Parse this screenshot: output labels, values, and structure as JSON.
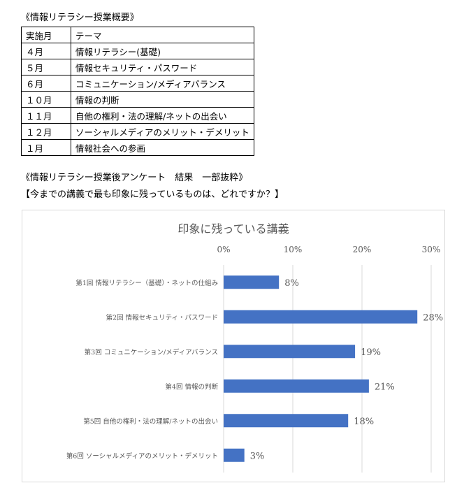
{
  "overview": {
    "heading": "《情報リテラシー授業概要》",
    "columns": [
      "実施月",
      "テーマ"
    ],
    "rows": [
      [
        "４月",
        "情報リテラシー(基礎)"
      ],
      [
        "５月",
        "情報セキュリティ・パスワード"
      ],
      [
        "６月",
        "コミュニケーション/メディアバランス"
      ],
      [
        "１０月",
        "情報の判断"
      ],
      [
        "１１月",
        "自他の権利・法の理解/ネットの出会い"
      ],
      [
        "１２月",
        "ソーシャルメディアのメリット・デメリット"
      ],
      [
        "１月",
        "情報社会への参画"
      ]
    ]
  },
  "survey": {
    "heading": "《情報リテラシー授業後アンケート　結果　一部抜粋》",
    "question": "【今までの講義で最も印象に残っているものは、どれですか？】"
  },
  "chart_data": {
    "type": "bar",
    "orientation": "horizontal",
    "title": "印象に残っている講義",
    "categories": [
      "第1回 情報リテラシー（基礎）・ネットの仕組み",
      "第2回 情報セキュリティ・パスワード",
      "第3回 コミュニケーション/メディアバランス",
      "第4回 情報の判断",
      "第5回 自他の権利・法の理解/ネットの出会い",
      "第6回 ソーシャルメディアのメリット・デメリット"
    ],
    "values": [
      8,
      28,
      19,
      21,
      18,
      3
    ],
    "value_labels": [
      "8%",
      "28%",
      "19%",
      "21%",
      "18%",
      "3%"
    ],
    "xlim": [
      0,
      30
    ],
    "xticks": [
      0,
      10,
      20,
      30
    ],
    "xtick_labels": [
      "0%",
      "10%",
      "20%",
      "30%"
    ],
    "xaxis_position": "top",
    "grid": true,
    "legend": "none",
    "bar_color": "#4472c4",
    "grid_color": "#d9d9d9",
    "text_color": "#595959"
  }
}
